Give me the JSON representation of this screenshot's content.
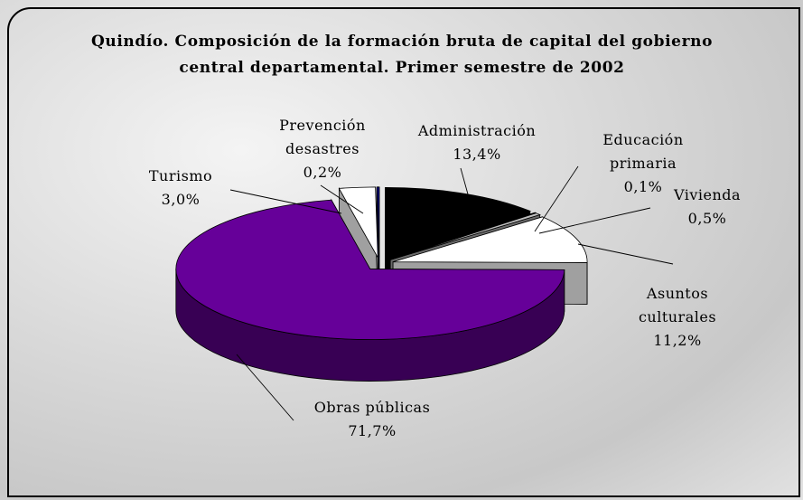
{
  "chart_data": {
    "type": "pie3d",
    "title": "Quindío. Composición de la formación bruta de capital del gobierno central departamental. Primer semestre de 2002",
    "categories": [
      "Administración",
      "Educación primaria",
      "Vivienda",
      "Asuntos culturales",
      "Obras públicas",
      "Turismo",
      "Prevención desastres"
    ],
    "values": [
      13.4,
      0.1,
      0.5,
      11.2,
      71.7,
      3.0,
      0.2
    ],
    "value_labels": [
      "13,4%",
      "0,1%",
      "0,5%",
      "11,2%",
      "71,7%",
      "3,0%",
      "0,2%"
    ],
    "colors": [
      "#000000",
      "#808080",
      "#c0c0c0",
      "#ffffff",
      "#660099",
      "#ffffff",
      "#000080"
    ]
  }
}
